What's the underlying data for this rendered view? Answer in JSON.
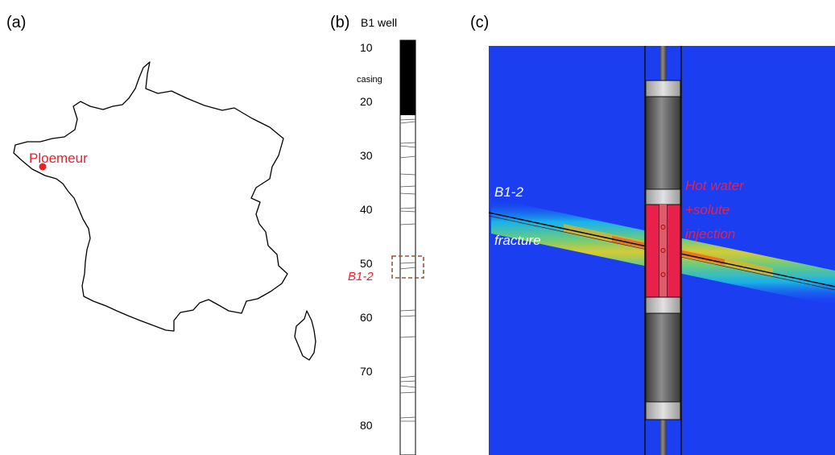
{
  "panels": {
    "a": {
      "label": "(a)",
      "location_label": "Ploemeur",
      "marker_color": "#e8202a"
    },
    "b": {
      "label": "(b)",
      "well_title": "B1 well",
      "casing_label": "casing",
      "depth_ticks": [
        "10",
        "20",
        "30",
        "40",
        "50",
        "60",
        "70",
        "80"
      ],
      "zone_label": "B1-2",
      "zone_color": "#e8202a",
      "box_color": "#a0522d"
    },
    "c": {
      "label": "(c)",
      "fracture_name": "B1-2",
      "fracture_word": "fracture",
      "injection_lines": [
        "Hot water",
        "+solute",
        "injection"
      ],
      "background_color": "#1a3ef0",
      "injection_color": "#e8204a",
      "annotation_text_color": "#ffffff",
      "injection_text_color": "#e8204a"
    }
  }
}
